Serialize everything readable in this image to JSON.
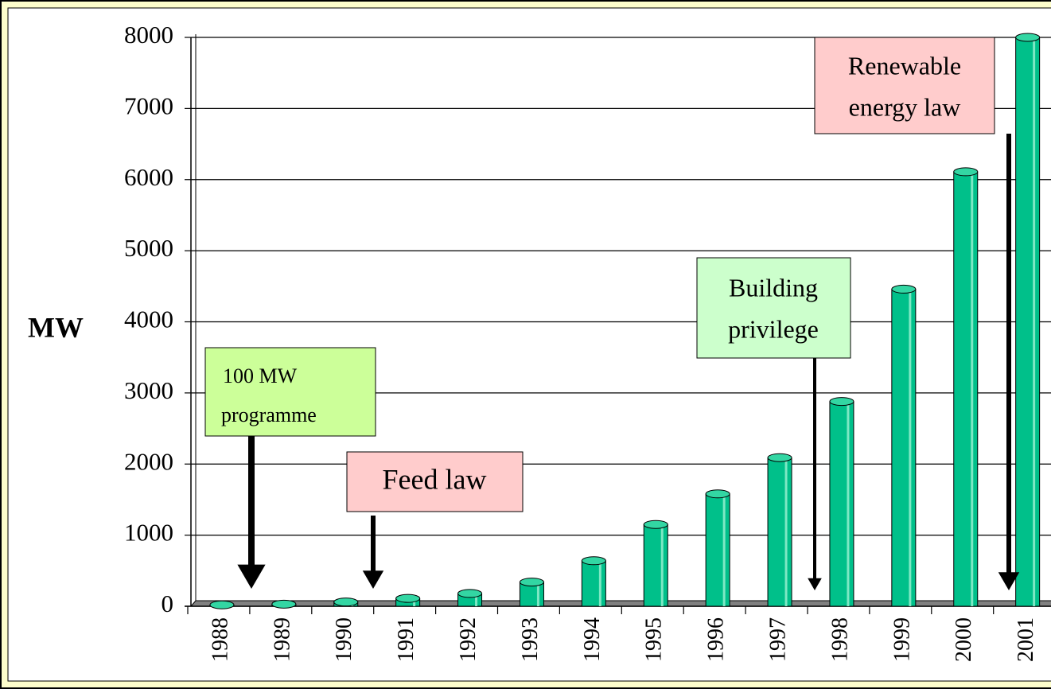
{
  "chart_data": {
    "type": "bar",
    "y_label": "MW",
    "categories": [
      "1988",
      "1989",
      "1990",
      "1991",
      "1992",
      "1993",
      "1994",
      "1995",
      "1996",
      "1997",
      "1998",
      "1999",
      "2000",
      "2001"
    ],
    "values": [
      20,
      30,
      60,
      110,
      180,
      340,
      640,
      1150,
      1580,
      2090,
      2880,
      4460,
      6110,
      8000
    ],
    "color": "#00c08a",
    "ylim": [
      0,
      8000
    ],
    "yticks": [
      0,
      1000,
      2000,
      3000,
      4000,
      5000,
      6000,
      7000,
      8000
    ],
    "grid": true,
    "annotations": [
      {
        "lines": [
          "100 MW",
          "programme"
        ],
        "color": "#ccff99"
      },
      {
        "lines": [
          "Feed law"
        ],
        "color": "#ffcccc"
      },
      {
        "lines": [
          "Building",
          "privilege"
        ],
        "color": "#ccffcc"
      },
      {
        "lines": [
          "Renewable",
          "energy law"
        ],
        "color": "#ffcccc"
      }
    ]
  }
}
